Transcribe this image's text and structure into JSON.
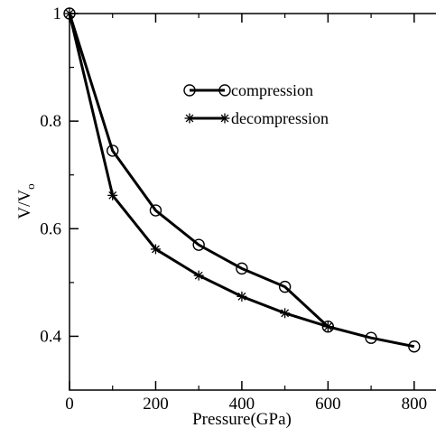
{
  "chart_data": {
    "type": "line",
    "xlabel": "Pressure(GPa)",
    "ylabel": {
      "main": "V/V",
      "sub": "o"
    },
    "xlim": [
      0,
      880
    ],
    "ylim": [
      0.3,
      1.0
    ],
    "xticks": [
      0,
      200,
      400,
      600,
      800
    ],
    "xtick_labels": [
      "0",
      "200",
      "400",
      "600",
      "800"
    ],
    "yticks": [
      0.4,
      0.6,
      0.8,
      1.0
    ],
    "ytick_labels": [
      "0.4",
      "0.6",
      "0.8",
      "1"
    ],
    "grid": false,
    "legend_position": "upper-right",
    "series": [
      {
        "name": "compression",
        "marker": "circle",
        "color": "#000000",
        "x": [
          0,
          100,
          200,
          300,
          400,
          500,
          600,
          700,
          800
        ],
        "y": [
          1.0,
          0.745,
          0.634,
          0.57,
          0.526,
          0.492,
          0.418,
          0.397,
          0.381
        ]
      },
      {
        "name": "decompression",
        "marker": "star",
        "color": "#000000",
        "x": [
          0,
          100,
          200,
          300,
          400,
          500,
          600
        ],
        "y": [
          1.0,
          0.662,
          0.562,
          0.513,
          0.474,
          0.443,
          0.418
        ]
      }
    ]
  }
}
